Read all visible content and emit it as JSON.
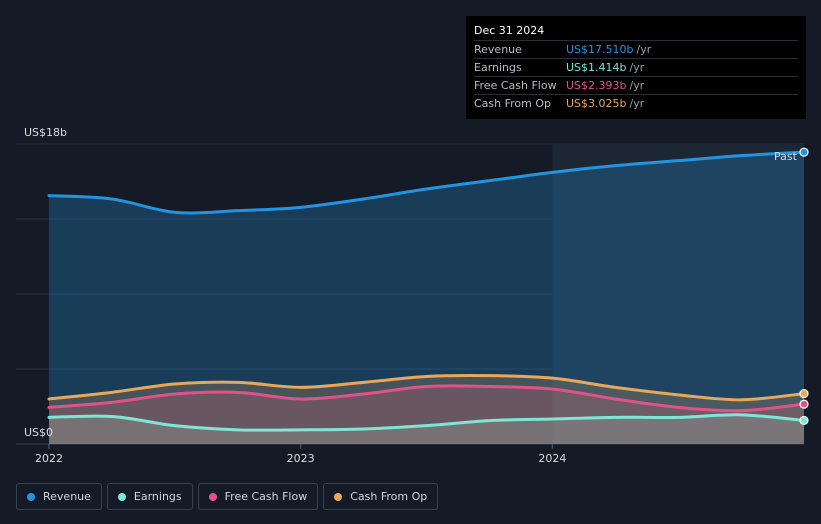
{
  "tooltip": {
    "date": "Dec 31 2024",
    "rows": [
      {
        "label": "Revenue",
        "value": "US$17.510b",
        "unit": "/yr",
        "color": "#2394df"
      },
      {
        "label": "Earnings",
        "value": "US$1.414b",
        "unit": "/yr",
        "color": "#7fe6d5"
      },
      {
        "label": "Free Cash Flow",
        "value": "US$2.393b",
        "unit": "/yr",
        "color": "#e0538a"
      },
      {
        "label": "Cash From Op",
        "value": "US$3.025b",
        "unit": "/yr",
        "color": "#e8a85a"
      }
    ]
  },
  "legend": [
    {
      "label": "Revenue",
      "color": "#2394df"
    },
    {
      "label": "Earnings",
      "color": "#7fe6d5"
    },
    {
      "label": "Free Cash Flow",
      "color": "#e0538a"
    },
    {
      "label": "Cash From Op",
      "color": "#e8a85a"
    }
  ],
  "chart_data": {
    "type": "area",
    "y_top_label": "US$18b",
    "y_bottom_label": "US$0",
    "ylim": [
      0,
      18
    ],
    "xlim": [
      2022.0,
      2025.0
    ],
    "x_ticks": [
      {
        "value": 2022.0,
        "label": "2022"
      },
      {
        "value": 2023.0,
        "label": "2023"
      },
      {
        "value": 2024.0,
        "label": "2024"
      }
    ],
    "past_label": "Past",
    "past_start": 2024.0,
    "series": [
      {
        "name": "Revenue",
        "color": "#2394df",
        "x": [
          2022.0,
          2022.25,
          2022.5,
          2022.75,
          2023.0,
          2023.25,
          2023.5,
          2023.75,
          2024.0,
          2024.25,
          2024.5,
          2024.75,
          2025.0
        ],
        "values": [
          14.9,
          14.7,
          13.9,
          14.0,
          14.2,
          14.7,
          15.3,
          15.8,
          16.3,
          16.7,
          17.0,
          17.3,
          17.51
        ]
      },
      {
        "name": "Earnings",
        "color": "#7fe6d5",
        "x": [
          2022.0,
          2022.25,
          2022.5,
          2022.75,
          2023.0,
          2023.25,
          2023.5,
          2023.75,
          2024.0,
          2024.25,
          2024.5,
          2024.75,
          2025.0
        ],
        "values": [
          1.6,
          1.65,
          1.1,
          0.85,
          0.85,
          0.9,
          1.1,
          1.4,
          1.5,
          1.6,
          1.6,
          1.75,
          1.414
        ]
      },
      {
        "name": "Free Cash Flow",
        "color": "#e0538a",
        "x": [
          2022.0,
          2022.25,
          2022.5,
          2022.75,
          2023.0,
          2023.25,
          2023.5,
          2023.75,
          2024.0,
          2024.25,
          2024.5,
          2024.75,
          2025.0
        ],
        "values": [
          2.2,
          2.5,
          3.0,
          3.1,
          2.7,
          3.0,
          3.45,
          3.45,
          3.3,
          2.7,
          2.2,
          2.0,
          2.393
        ]
      },
      {
        "name": "Cash From Op",
        "color": "#e8a85a",
        "x": [
          2022.0,
          2022.25,
          2022.5,
          2022.75,
          2023.0,
          2023.25,
          2023.5,
          2023.75,
          2024.0,
          2024.25,
          2024.5,
          2024.75,
          2025.0
        ],
        "values": [
          2.7,
          3.1,
          3.6,
          3.7,
          3.4,
          3.7,
          4.05,
          4.1,
          3.95,
          3.4,
          2.95,
          2.65,
          3.025
        ]
      }
    ]
  }
}
